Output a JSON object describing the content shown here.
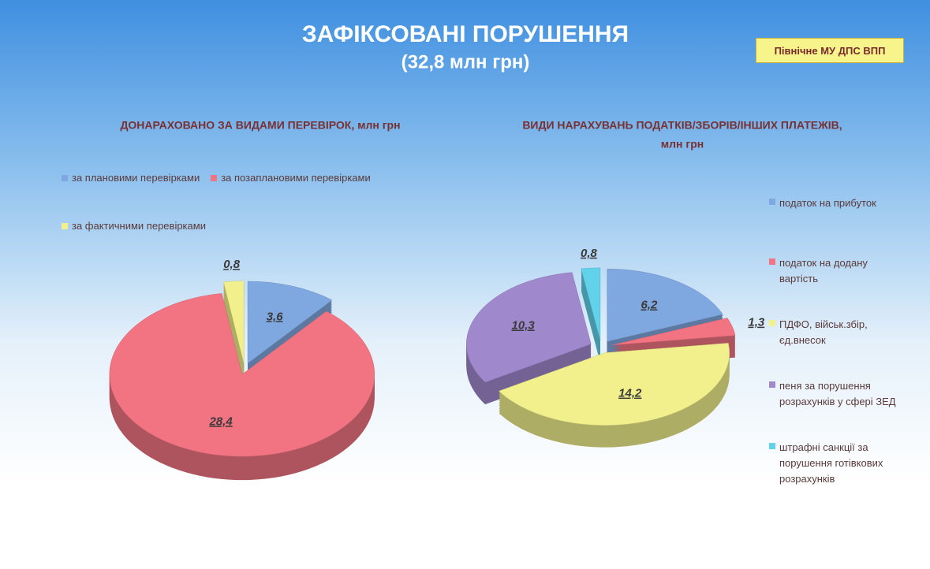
{
  "header": {
    "title": "ЗАФІКСОВАНІ  ПОРУШЕННЯ",
    "subtitle": "(32,8 млн грн)",
    "badge": "Північне МУ  ДПС ВПП"
  },
  "chart_data": [
    {
      "type": "pie",
      "title": "ДОНАРАХОВАНО ЗА ВИДАМИ ПЕРЕВІРОК, млн грн",
      "categories": [
        "за плановими перевірками",
        "за позаплановими перевірками",
        "за фактичними перевірками"
      ],
      "values": [
        3.6,
        28.4,
        0.8
      ],
      "value_labels": [
        "3,6",
        "28,4",
        "0,8"
      ],
      "colors": [
        "#80a8e0",
        "#f27482",
        "#f2f08c"
      ]
    },
    {
      "type": "pie",
      "title": [
        "ВИДИ НАРАХУВАНЬ ПОДАТКІВ/ЗБОРІВ/ІНШИХ ПЛАТЕЖІВ,",
        "млн грн"
      ],
      "categories": [
        "податок на прибуток",
        "податок на додану вартість",
        "ПДФО, військ.збір, єд.внесок",
        "пеня за порушення розрахунків у сфері ЗЕД",
        "штрафні санкції за порушення готівкових розрахунків"
      ],
      "values": [
        6.2,
        1.3,
        14.2,
        10.3,
        0.8
      ],
      "value_labels": [
        "6,2",
        "1,3",
        "14,2",
        "10,3",
        "0,8"
      ],
      "colors": [
        "#80a8e0",
        "#f27482",
        "#f2f08c",
        "#a088cc",
        "#62d2ea"
      ]
    }
  ]
}
